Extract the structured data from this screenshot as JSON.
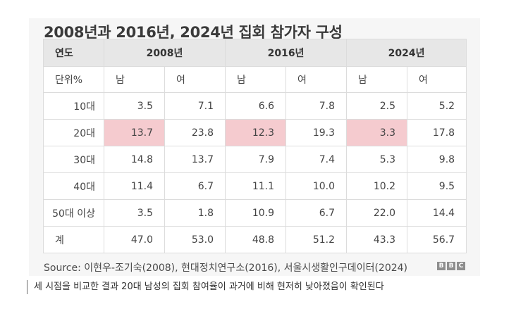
{
  "title": "2008년과 2016년, 2024년 집회 참가자 구성",
  "table": {
    "corner_label": "연도",
    "years": [
      "2008년",
      "2016년",
      "2024년"
    ],
    "unit_label": "단위%",
    "sub_headers": [
      "남",
      "여",
      "남",
      "여",
      "남",
      "여"
    ],
    "rows": [
      {
        "label": "10대",
        "values": [
          "3.5",
          "7.1",
          "6.6",
          "7.8",
          "2.5",
          "5.2"
        ]
      },
      {
        "label": "20대",
        "values": [
          "13.7",
          "23.8",
          "12.3",
          "19.3",
          "3.3",
          "17.8"
        ]
      },
      {
        "label": "30대",
        "values": [
          "14.8",
          "13.7",
          "7.9",
          "7.4",
          "5.3",
          "9.8"
        ]
      },
      {
        "label": "40대",
        "values": [
          "11.4",
          "6.7",
          "11.1",
          "10.0",
          "10.2",
          "9.5"
        ]
      },
      {
        "label": "50대 이상",
        "values": [
          "3.5",
          "1.8",
          "10.9",
          "6.7",
          "22.0",
          "14.4"
        ]
      },
      {
        "label": "계",
        "values": [
          "47.0",
          "53.0",
          "48.8",
          "51.2",
          "43.3",
          "56.7"
        ]
      }
    ],
    "highlight_color": "#f5cbcf"
  },
  "source": "Source: 이현우-조기숙(2008), 현대정치연구소(2016), 서울시생활인구데이터(2024)",
  "logo": {
    "letters": [
      "B",
      "B",
      "C"
    ]
  },
  "caption": "세 시점을 비교한 결과 20대 남성의 집회 참여율이 과거에 비해 현저히 낮아졌음이 확인된다"
}
